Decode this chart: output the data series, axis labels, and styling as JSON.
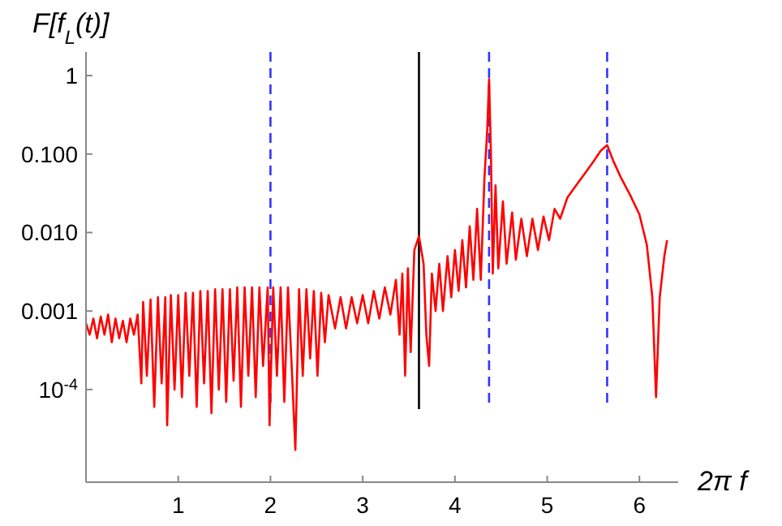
{
  "chart_data": {
    "type": "line",
    "xlabel": "2π f",
    "ylabel": "F[f$_{L}$(t)]",
    "log": "y",
    "xlim": [
      0,
      6.42
    ],
    "xticks": [
      1,
      2,
      3,
      4,
      5,
      6
    ],
    "ylim": [
      6.6e-06,
      2
    ],
    "yticks": [
      {
        "value": 0.0001,
        "label": "10$^{-4}$"
      },
      {
        "value": 0.001,
        "label": "0.001"
      },
      {
        "value": 0.01,
        "label": "0.010"
      },
      {
        "value": 0.1,
        "label": "0.100"
      },
      1
    ],
    "ref_lines": [
      {
        "axis": "x",
        "value": 2,
        "color": "#3333ff",
        "line_style": "dashed"
      },
      {
        "axis": "x",
        "value": 3.61,
        "color": "#000000",
        "line_style": "solid"
      },
      {
        "axis": "x",
        "value": 4.37,
        "color": "#3333ff",
        "line_style": "dashed"
      },
      {
        "axis": "x",
        "value": 5.65,
        "color": "#3333ff",
        "line_style": "dashed"
      }
    ],
    "series": [
      {
        "color": "#ff0000",
        "x": [
          0.0,
          0.04,
          0.08,
          0.12,
          0.16,
          0.2,
          0.24,
          0.28,
          0.32,
          0.36,
          0.4,
          0.44,
          0.48,
          0.52,
          0.56,
          0.6,
          0.62,
          0.66,
          0.7,
          0.74,
          0.78,
          0.82,
          0.86,
          0.88,
          0.92,
          0.96,
          1.0,
          1.04,
          1.08,
          1.12,
          1.16,
          1.2,
          1.24,
          1.28,
          1.32,
          1.36,
          1.4,
          1.44,
          1.48,
          1.52,
          1.56,
          1.6,
          1.64,
          1.68,
          1.72,
          1.76,
          1.8,
          1.84,
          1.88,
          1.92,
          1.97,
          1.99,
          2.03,
          2.07,
          2.11,
          2.15,
          2.19,
          2.23,
          2.27,
          2.31,
          2.35,
          2.39,
          2.43,
          2.47,
          2.51,
          2.55,
          2.59,
          2.63,
          2.7,
          2.76,
          2.82,
          2.88,
          2.94,
          3.0,
          3.06,
          3.12,
          3.18,
          3.24,
          3.3,
          3.36,
          3.4,
          3.43,
          3.46,
          3.49,
          3.52,
          3.56,
          3.61,
          3.66,
          3.69,
          3.72,
          3.75,
          3.79,
          3.83,
          3.87,
          3.92,
          3.96,
          4.0,
          4.04,
          4.08,
          4.12,
          4.16,
          4.2,
          4.24,
          4.28,
          4.32,
          4.35,
          4.37,
          4.39,
          4.41,
          4.44,
          4.47,
          4.52,
          4.56,
          4.62,
          4.66,
          4.72,
          4.78,
          4.84,
          4.9,
          4.96,
          5.02,
          5.08,
          5.14,
          5.22,
          5.3,
          5.4,
          5.5,
          5.58,
          5.65,
          5.72,
          5.8,
          5.9,
          6.0,
          6.08,
          6.14,
          6.18,
          6.22,
          6.27,
          6.3
        ],
        "values": [
          0.0007,
          0.0005,
          0.0008,
          0.00045,
          0.00085,
          0.0005,
          0.0009,
          0.0004,
          0.0008,
          0.00045,
          0.00075,
          0.0004,
          0.0008,
          0.0005,
          0.0009,
          0.00012,
          0.0013,
          0.00015,
          0.0014,
          6e-05,
          0.0015,
          0.00012,
          0.0015,
          3.5e-05,
          0.0016,
          0.0001,
          0.0016,
          8e-05,
          0.0017,
          0.00015,
          0.0017,
          6e-05,
          0.0018,
          0.00012,
          0.0018,
          5e-05,
          0.0019,
          0.0001,
          0.0019,
          7e-05,
          0.0019,
          0.00013,
          0.002,
          6e-05,
          0.002,
          0.00015,
          0.002,
          8e-05,
          0.002,
          0.0002,
          0.002,
          3.5e-05,
          0.002,
          0.00015,
          0.002,
          7e-05,
          0.002,
          0.0002,
          1.7e-05,
          0.0019,
          0.00015,
          0.0019,
          0.00025,
          0.0018,
          0.00015,
          0.0017,
          0.0004,
          0.0016,
          0.0006,
          0.0015,
          0.0006,
          0.0015,
          0.0007,
          0.0016,
          0.0007,
          0.0018,
          0.0008,
          0.002,
          0.0009,
          0.0025,
          0.0005,
          0.003,
          0.00015,
          0.0035,
          0.0003,
          0.006,
          0.009,
          0.004,
          0.0005,
          0.0002,
          0.003,
          0.001,
          0.004,
          0.001,
          0.005,
          0.0015,
          0.006,
          0.0018,
          0.008,
          0.002,
          0.012,
          0.0025,
          0.02,
          0.0025,
          0.05,
          0.2,
          0.9,
          0.1,
          0.003,
          0.04,
          0.0035,
          0.025,
          0.004,
          0.018,
          0.0045,
          0.015,
          0.005,
          0.015,
          0.006,
          0.016,
          0.008,
          0.02,
          0.015,
          0.028,
          0.038,
          0.055,
          0.08,
          0.11,
          0.13,
          0.08,
          0.05,
          0.03,
          0.017,
          0.007,
          0.0015,
          8e-05,
          0.0015,
          0.005,
          0.008
        ]
      }
    ]
  }
}
